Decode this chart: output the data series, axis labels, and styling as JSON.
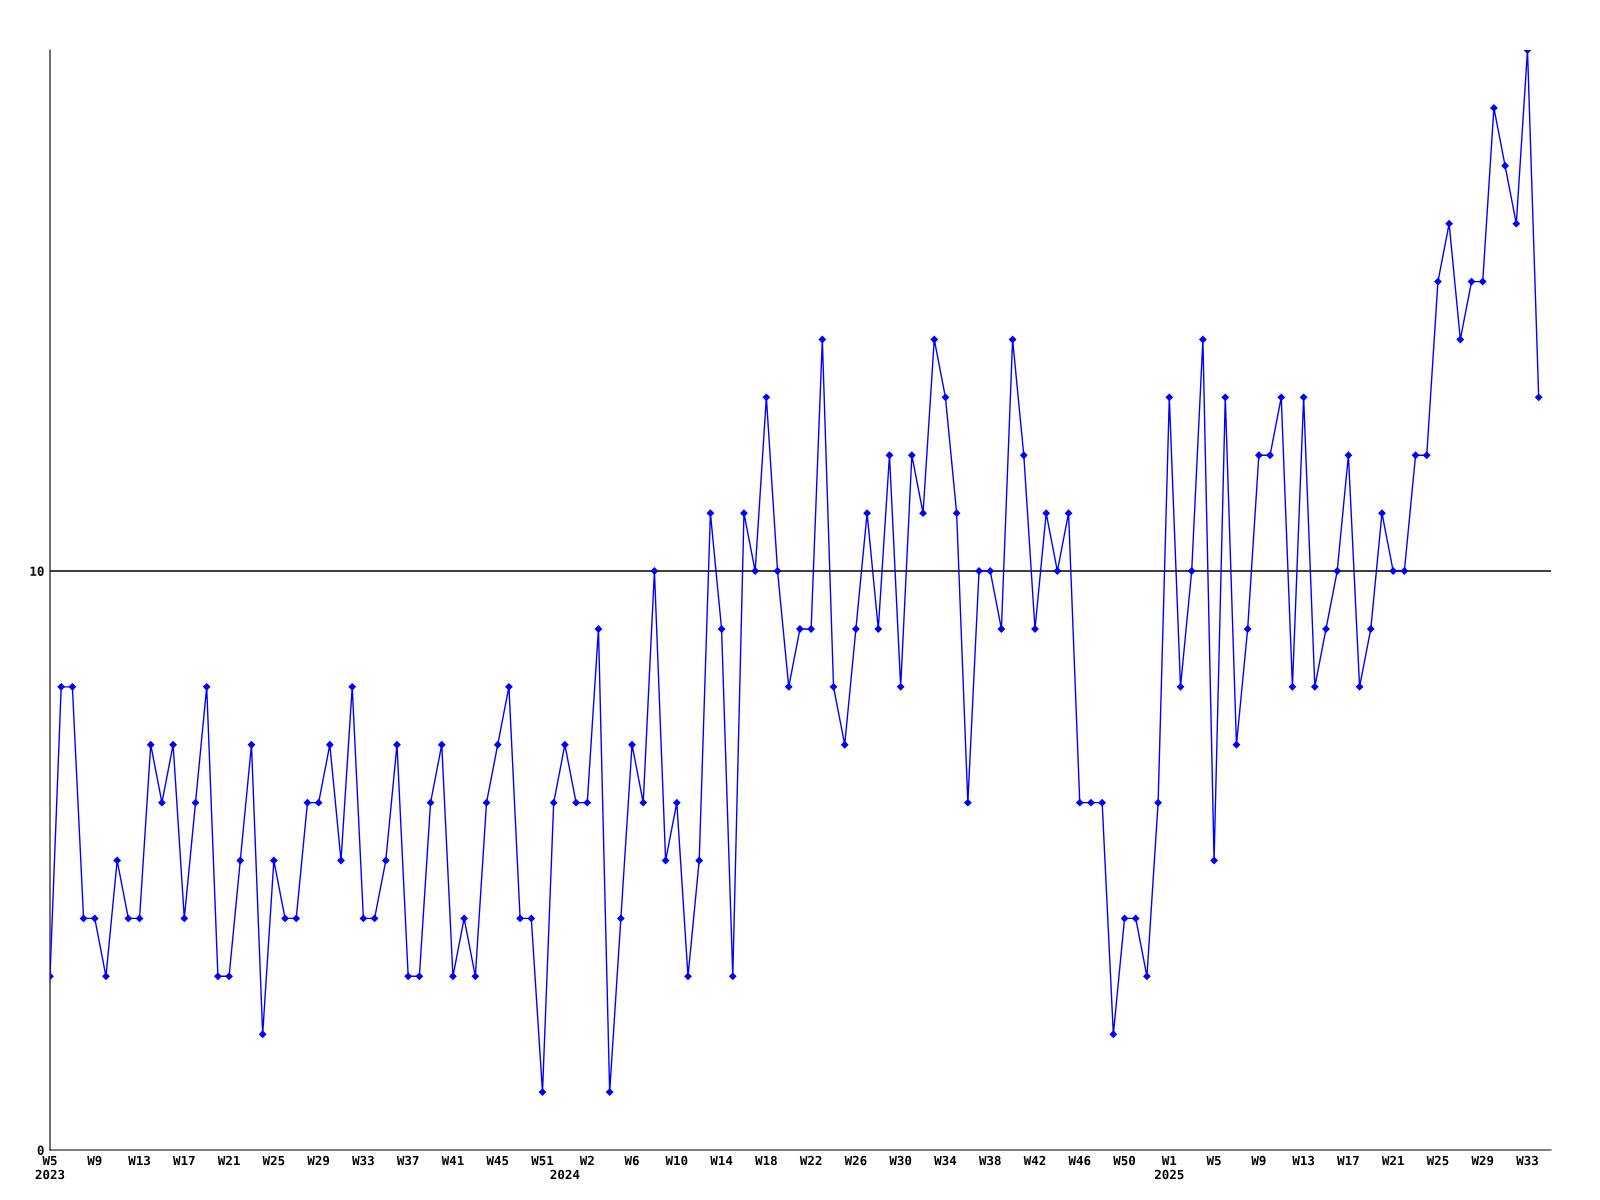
{
  "chart_data": {
    "type": "line",
    "categories": [
      "W5\n2023",
      null,
      null,
      null,
      "W9",
      null,
      null,
      null,
      "W13",
      null,
      null,
      null,
      "W17",
      null,
      null,
      null,
      "W21",
      null,
      null,
      null,
      "W25",
      null,
      null,
      null,
      "W29",
      null,
      null,
      null,
      "W33",
      null,
      null,
      null,
      "W37",
      null,
      null,
      null,
      "W41",
      null,
      null,
      null,
      "W45",
      null,
      null,
      null,
      "W51",
      null,
      "\n2024",
      null,
      "W2",
      null,
      null,
      null,
      "W6",
      null,
      null,
      null,
      "W10",
      null,
      null,
      null,
      "W14",
      null,
      null,
      null,
      "W18",
      null,
      null,
      null,
      "W22",
      null,
      null,
      null,
      "W26",
      null,
      null,
      null,
      "W30",
      null,
      null,
      null,
      "W34",
      null,
      null,
      null,
      "W38",
      null,
      null,
      null,
      "W42",
      null,
      null,
      null,
      "W46",
      null,
      null,
      null,
      "W50",
      null,
      null,
      null,
      "W1\n2025",
      null,
      null,
      null,
      "W5",
      null,
      null,
      null,
      "W9",
      null,
      null,
      null,
      "W13",
      null,
      null,
      null,
      "W17",
      null,
      null,
      null,
      "W21",
      null,
      null,
      null,
      "W25",
      null,
      null,
      null,
      "W29",
      null,
      null,
      null,
      "W33",
      null
    ],
    "series": [
      {
        "color": "#0000ff",
        "values": [
          3,
          8,
          8,
          4,
          4,
          3,
          5,
          4,
          4,
          7,
          6,
          7,
          4,
          6,
          8,
          3,
          3,
          5,
          7,
          2,
          5,
          4,
          4,
          6,
          6,
          7,
          5,
          8,
          4,
          4,
          5,
          7,
          3,
          3,
          6,
          7,
          3,
          4,
          3,
          6,
          7,
          8,
          4,
          4,
          1,
          6,
          7,
          6,
          6,
          9,
          1,
          4,
          7,
          6,
          10,
          5,
          6,
          3,
          5,
          11,
          9,
          3,
          11,
          10,
          13,
          10,
          8,
          9,
          9,
          14,
          8,
          7,
          9,
          11,
          9,
          12,
          8,
          12,
          11,
          14,
          13,
          11,
          6,
          10,
          10,
          9,
          14,
          12,
          9,
          11,
          10,
          11,
          6,
          6,
          6,
          2,
          4,
          4,
          3,
          6,
          13,
          8,
          10,
          14,
          5,
          13,
          7,
          9,
          12,
          12,
          13,
          8,
          13,
          8,
          9,
          10,
          12,
          8,
          9,
          11,
          10,
          10,
          12,
          12,
          15,
          16,
          14,
          15,
          15,
          18,
          17,
          16,
          19,
          13
        ]
      }
    ],
    "ylim": [
      0,
      19
    ],
    "yticks": [
      0,
      10
    ],
    "ref_lines": [
      {
        "axis": "y",
        "value": 10,
        "color": "#000000"
      }
    ],
    "grid": false,
    "marker": "diamond",
    "line_style": "solid"
  }
}
